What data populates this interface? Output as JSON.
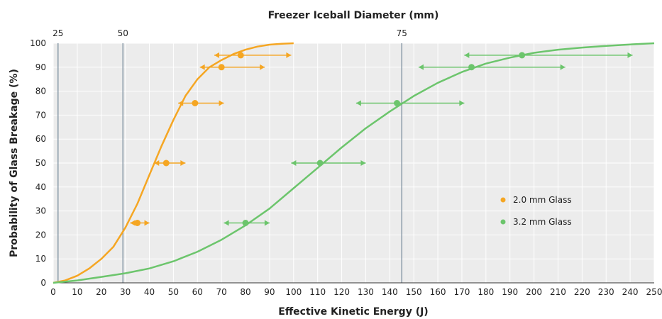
{
  "chart_data": {
    "type": "line",
    "xlabel": "Effective Kinetic Energy (J)",
    "ylabel": "Probability of Glass Breakage (%)",
    "top_axis_label": "Freezer Iceball Diameter (mm)",
    "xlim": [
      0,
      250
    ],
    "ylim": [
      0,
      100
    ],
    "x_ticks": [
      0,
      10,
      20,
      30,
      40,
      50,
      60,
      70,
      80,
      90,
      100,
      110,
      120,
      130,
      140,
      150,
      160,
      170,
      180,
      190,
      200,
      210,
      220,
      230,
      240,
      250
    ],
    "y_ticks": [
      0,
      10,
      20,
      30,
      40,
      50,
      60,
      70,
      80,
      90,
      100
    ],
    "grid": true,
    "legend_position": "right",
    "top_axis_ticks": [
      {
        "label": "25",
        "x": 2
      },
      {
        "label": "50",
        "x": 29
      },
      {
        "label": "75",
        "x": 145
      }
    ],
    "series": [
      {
        "name": "2.0 mm Glass",
        "color": "#F5A623",
        "curve_x": [
          0,
          5,
          10,
          15,
          20,
          25,
          30,
          35,
          40,
          45,
          50,
          55,
          60,
          65,
          70,
          75,
          80,
          85,
          90,
          95,
          100
        ],
        "curve_y": [
          0,
          1,
          3,
          6,
          10,
          15,
          23,
          33,
          45,
          57,
          68,
          78,
          85,
          90,
          93,
          95.5,
          97.3,
          98.6,
          99.4,
          99.8,
          100
        ],
        "points": [
          {
            "x": 35,
            "y": 25,
            "xmin": 32,
            "xmax": 40
          },
          {
            "x": 47,
            "y": 50,
            "xmin": 42,
            "xmax": 55
          },
          {
            "x": 59,
            "y": 75,
            "xmin": 52,
            "xmax": 71
          },
          {
            "x": 70,
            "y": 90,
            "xmin": 61,
            "xmax": 88
          },
          {
            "x": 78,
            "y": 95,
            "xmin": 67,
            "xmax": 99
          }
        ]
      },
      {
        "name": "3.2 mm Glass",
        "color": "#6CC56C",
        "curve_x": [
          0,
          10,
          20,
          30,
          40,
          50,
          60,
          70,
          80,
          90,
          100,
          110,
          120,
          130,
          140,
          150,
          160,
          170,
          180,
          190,
          200,
          210,
          220,
          230,
          240,
          250
        ],
        "curve_y": [
          0,
          1,
          2.5,
          4,
          6,
          9,
          13,
          18,
          24,
          31,
          39.5,
          48,
          56.5,
          64.5,
          71.5,
          78,
          83.5,
          88,
          91.5,
          94,
          96,
          97.3,
          98.2,
          98.9,
          99.5,
          100
        ],
        "points": [
          {
            "x": 80,
            "y": 25,
            "xmin": 71,
            "xmax": 90
          },
          {
            "x": 111,
            "y": 50,
            "xmin": 99,
            "xmax": 130
          },
          {
            "x": 143,
            "y": 75,
            "xmin": 126,
            "xmax": 171
          },
          {
            "x": 174,
            "y": 90,
            "xmin": 152,
            "xmax": 213
          },
          {
            "x": 195,
            "y": 95,
            "xmin": 171,
            "xmax": 241
          }
        ]
      }
    ]
  }
}
